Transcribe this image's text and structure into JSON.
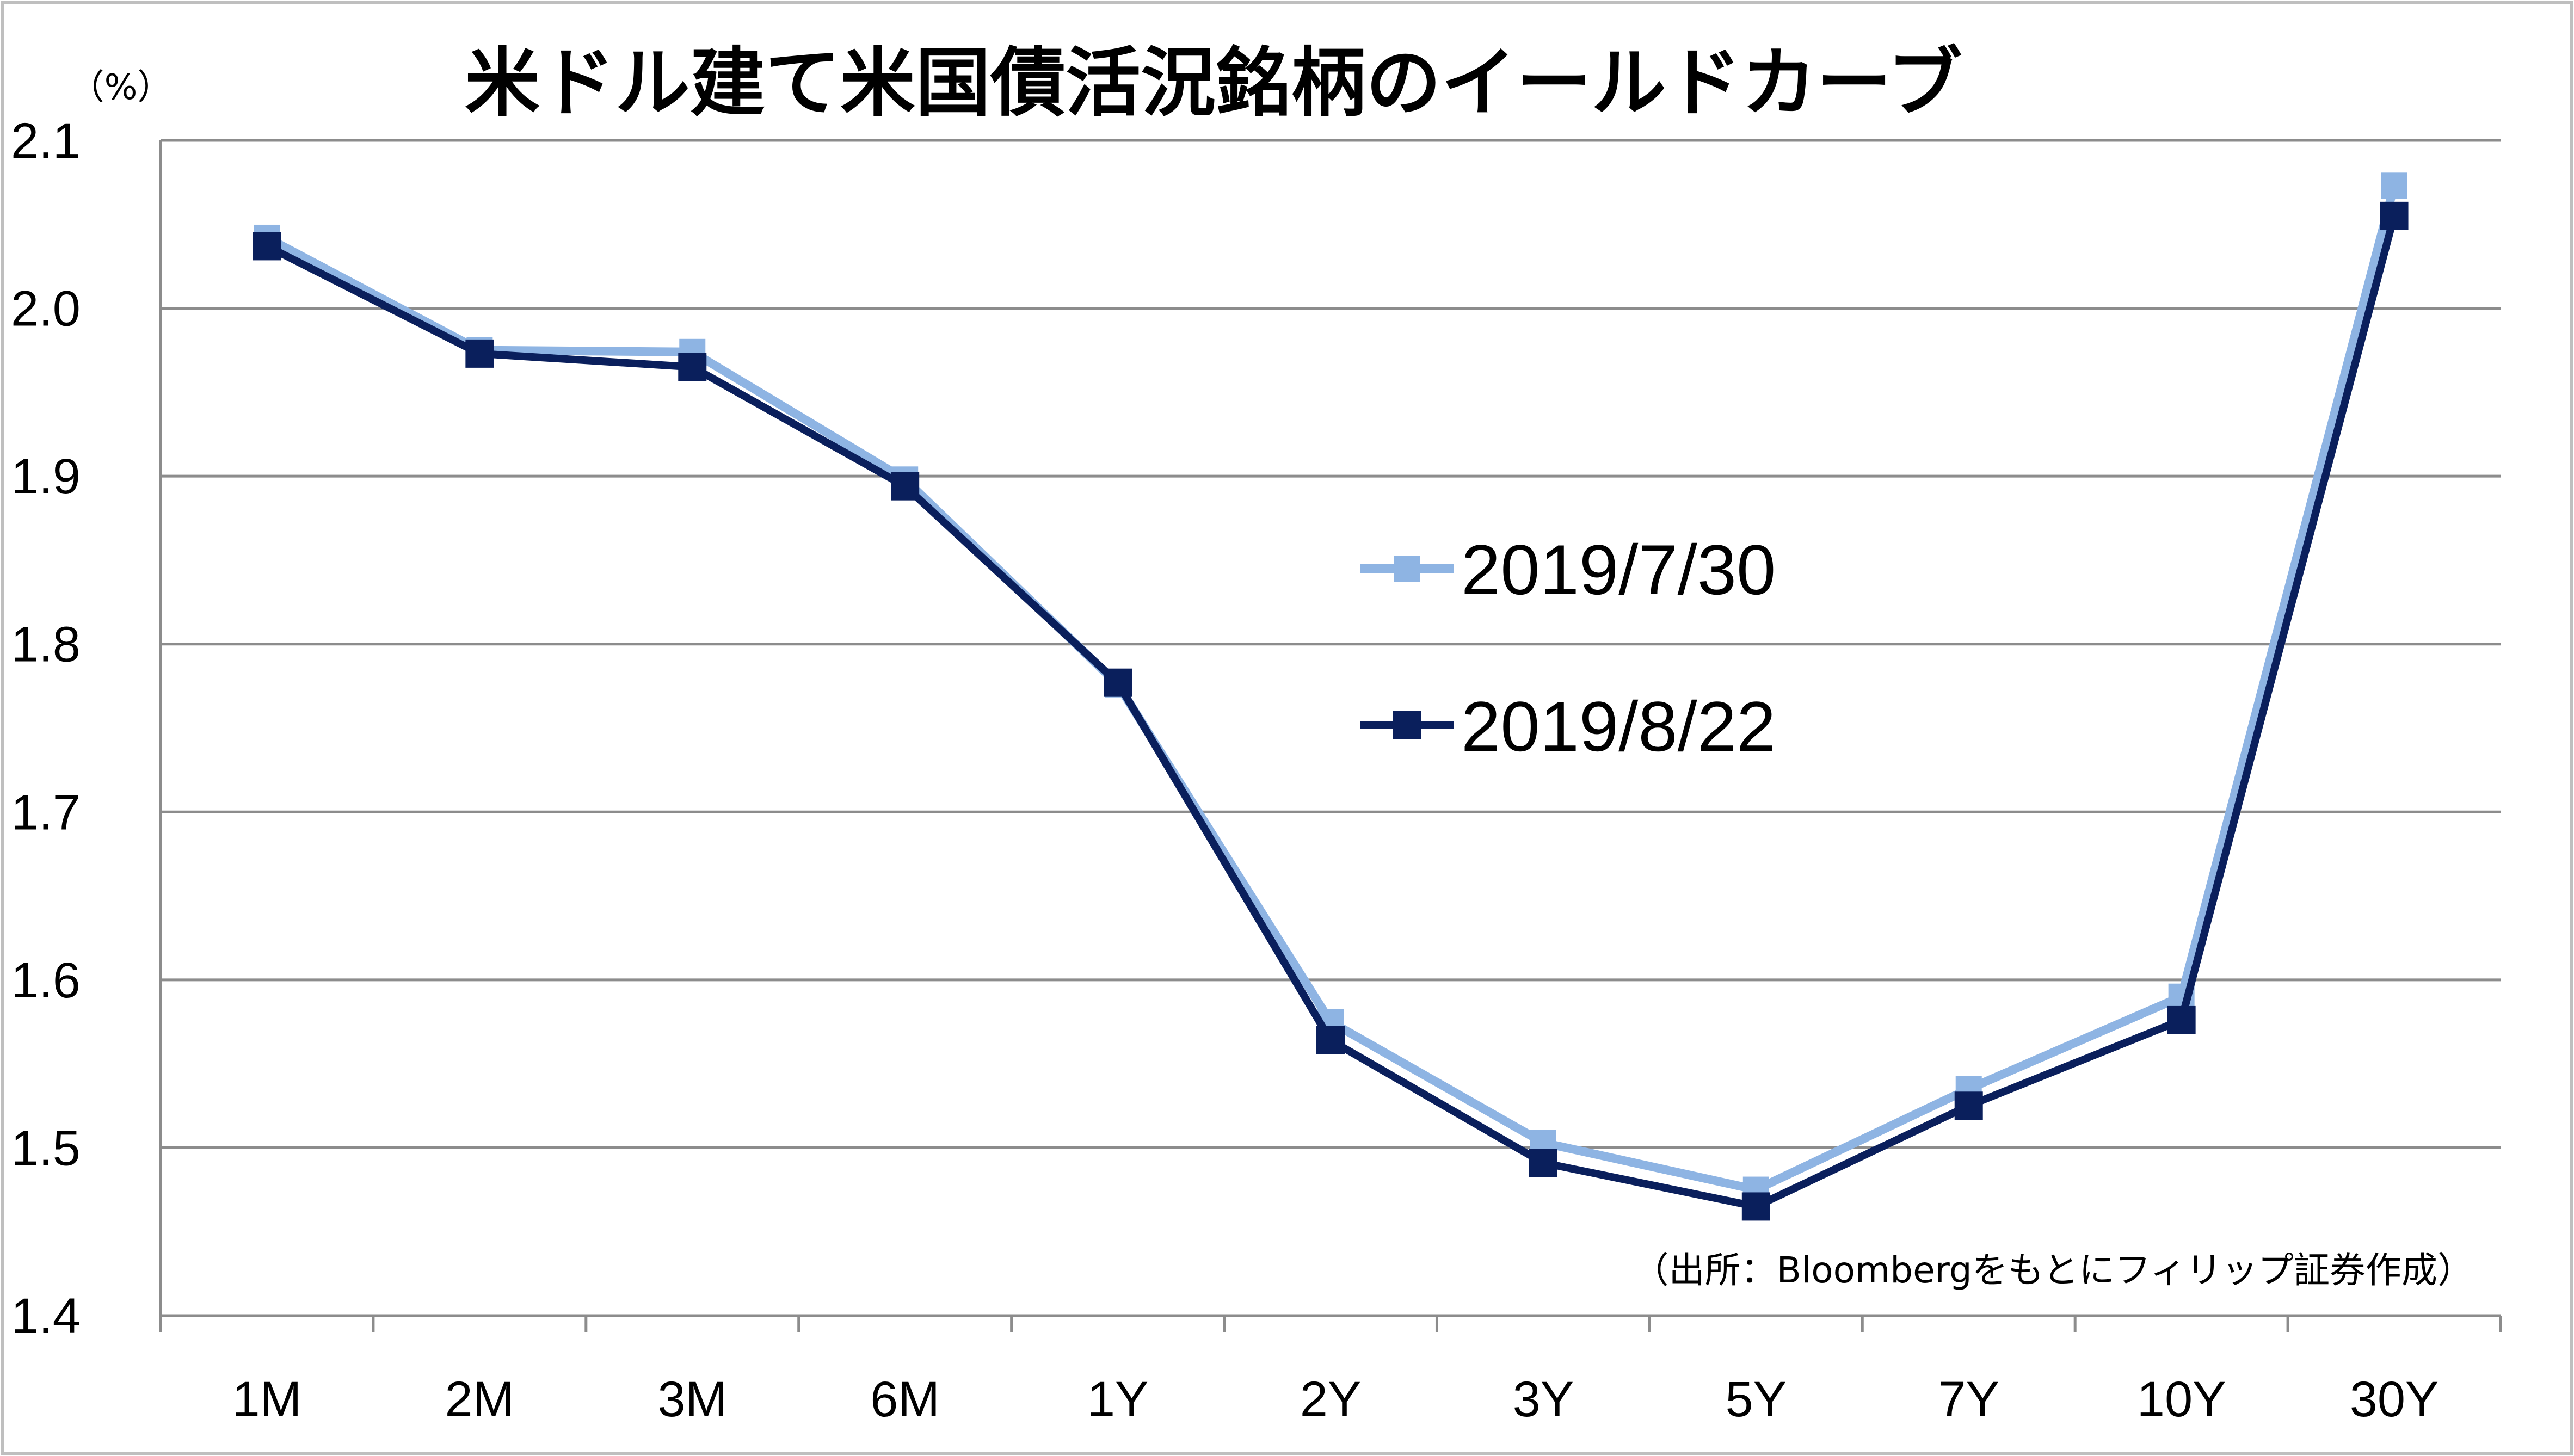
{
  "chart_data": {
    "type": "line",
    "title": "米ドル建て米国債活況銘柄のイールドカーブ",
    "unit_label": "（%）",
    "categories": [
      "1M",
      "2M",
      "3M",
      "6M",
      "1Y",
      "2Y",
      "3Y",
      "5Y",
      "7Y",
      "10Y",
      "30Y"
    ],
    "ylim": [
      1.4,
      2.1
    ],
    "yticks": [
      "1.4",
      "1.5",
      "1.6",
      "1.7",
      "1.8",
      "1.9",
      "2.0",
      "2.1"
    ],
    "grid": true,
    "legend_position": "center-right",
    "series": [
      {
        "name": "2019/7/30",
        "color": "#8eb4e3",
        "marker": "square",
        "values": [
          2.042,
          1.975,
          1.974,
          1.898,
          1.776,
          1.575,
          1.503,
          1.475,
          1.535,
          1.59,
          2.073
        ]
      },
      {
        "name": "2019/8/22",
        "color": "#0a1f5c",
        "marker": "square",
        "values": [
          2.037,
          1.973,
          1.965,
          1.894,
          1.777,
          1.564,
          1.491,
          1.465,
          1.525,
          1.576,
          2.055
        ]
      }
    ],
    "source": "（出所：Bloombergをもとにフィリップ証券作成）"
  }
}
